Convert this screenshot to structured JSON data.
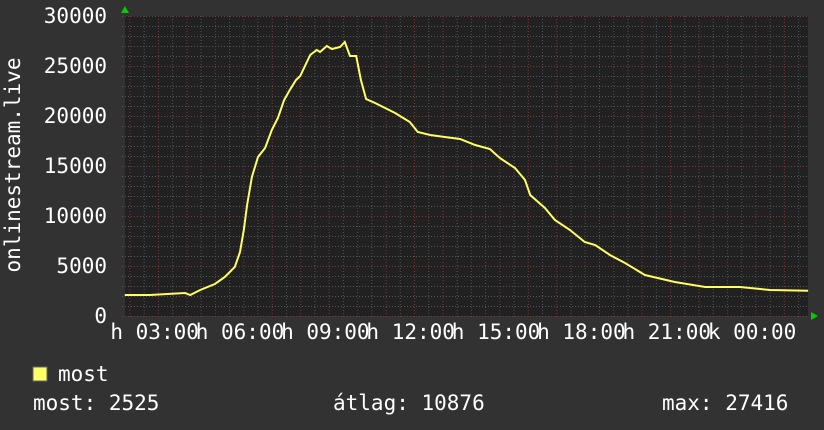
{
  "chart_data": {
    "type": "line",
    "ylabel": "onlinestream.live",
    "ylim": [
      0,
      30000
    ],
    "yticks": [
      "0",
      "5000",
      "10000",
      "15000",
      "20000",
      "25000",
      "30000"
    ],
    "xtick_labels": [
      "h 03:00",
      "h 06:00",
      "h 09:00",
      "h 12:00",
      "h 15:00",
      "h 18:00",
      "h 21:00",
      "k 00:00"
    ],
    "grid": true,
    "colors": {
      "background": "#323232",
      "plot": "#212121",
      "line": "#ffff66",
      "major_grid": "#7a3a3a",
      "minor_grid": "#555555",
      "arrow": "#00cc00"
    },
    "series": [
      {
        "name": "most",
        "x": [
          "00:49",
          "01:42",
          "02:56",
          "03:07",
          "03:28",
          "03:59",
          "04:20",
          "04:41",
          "04:52",
          "05:00",
          "05:07",
          "05:17",
          "05:30",
          "05:45",
          "05:59",
          "06:12",
          "06:25",
          "06:37",
          "06:50",
          "06:59",
          "07:20",
          "07:34",
          "07:41",
          "07:55",
          "08:06",
          "08:23",
          "08:33",
          "08:44",
          "08:57",
          "09:07",
          "09:18",
          "09:37",
          "09:58",
          "10:19",
          "10:50",
          "11:07",
          "11:33",
          "12:04",
          "12:36",
          "13:08",
          "13:39",
          "14:00",
          "14:32",
          "14:53",
          "15:04",
          "15:35",
          "15:56",
          "16:28",
          "16:59",
          "17:21",
          "17:52",
          "18:24",
          "19:06",
          "20:09",
          "21:13",
          "22:26",
          "23:30",
          "00:50"
        ],
        "values": [
          2100,
          2100,
          2300,
          2100,
          2600,
          3200,
          3900,
          4900,
          6400,
          8600,
          11100,
          13900,
          15900,
          16800,
          18600,
          19800,
          21600,
          22600,
          23600,
          24000,
          26100,
          26600,
          26400,
          27000,
          26700,
          26900,
          27400,
          26000,
          26000,
          23600,
          21700,
          21300,
          20800,
          20300,
          19400,
          18400,
          18100,
          17900,
          17700,
          17100,
          16700,
          15800,
          14800,
          13600,
          12100,
          10800,
          9600,
          8600,
          7400,
          7100,
          6100,
          5300,
          4100,
          3400,
          2900,
          2900,
          2600,
          2525
        ]
      }
    ]
  },
  "legend": {
    "label": "most"
  },
  "stats": {
    "current": "most: 2525",
    "average": "átlag: 10876",
    "max": "max: 27416"
  }
}
